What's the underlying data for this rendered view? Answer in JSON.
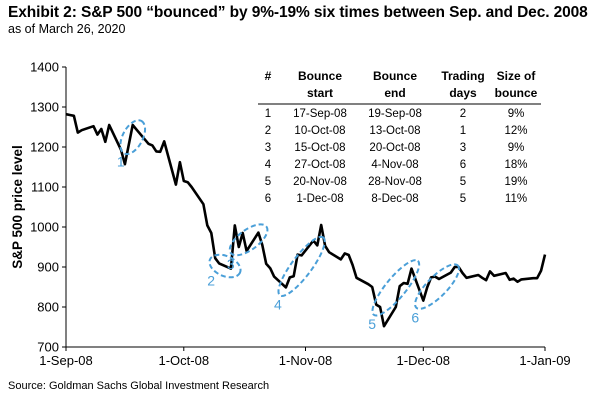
{
  "title": "Exhibit 2: S&P 500 “bounced” by 9%-19% six times between Sep. and Dec. 2008",
  "subtitle": "as of March 26, 2020",
  "source": "Source: Goldman Sachs Global Investment Research",
  "colors": {
    "line": "#000000",
    "callout": "#4a9fd8"
  },
  "chart_data": {
    "type": "line",
    "ylabel": "S&P 500 price level",
    "ylim": [
      700,
      1400
    ],
    "yticks": [
      700,
      800,
      900,
      1000,
      1100,
      1200,
      1300,
      1400
    ],
    "xlim_days": [
      0,
      122
    ],
    "xticks": [
      {
        "day": 0,
        "label": "1-Sep-08"
      },
      {
        "day": 30,
        "label": "1-Oct-08"
      },
      {
        "day": 61,
        "label": "1-Nov-08"
      },
      {
        "day": 91,
        "label": "1-Dec-08"
      },
      {
        "day": 122,
        "label": "1-Jan-09"
      }
    ],
    "series": [
      {
        "name": "S&P 500",
        "days": [
          0,
          1,
          2,
          3,
          4,
          7,
          8,
          9,
          10,
          11,
          14,
          15,
          16,
          17,
          18,
          21,
          22,
          23,
          24,
          25,
          28,
          29,
          30,
          31,
          32,
          35,
          36,
          37,
          38,
          39,
          42,
          43,
          44,
          45,
          46,
          49,
          50,
          51,
          52,
          53,
          56,
          57,
          58,
          59,
          60,
          63,
          64,
          65,
          66,
          67,
          70,
          71,
          72,
          73,
          74,
          77,
          78,
          79,
          80,
          81,
          84,
          85,
          86,
          87,
          88,
          91,
          92,
          93,
          94,
          95,
          98,
          99,
          100,
          101,
          102,
          105,
          106,
          107,
          108,
          109,
          112,
          113,
          114,
          115,
          116,
          119,
          120,
          121,
          122
        ],
        "values": [
          1282,
          1280,
          1278,
          1236,
          1242,
          1252,
          1231,
          1245,
          1213,
          1255,
          1193,
          1157,
          1206,
          1255,
          1243,
          1208,
          1204,
          1189,
          1188,
          1214,
          1106,
          1162,
          1115,
          1112,
          1100,
          1057,
          1004,
          985,
          922,
          909,
          896,
          1004,
          950,
          985,
          940,
          986,
          955,
          908,
          897,
          876,
          849,
          874,
          877,
          931,
          929,
          966,
          954,
          1005,
          953,
          937,
          919,
          934,
          930,
          905,
          873,
          857,
          850,
          806,
          800,
          752,
          800,
          852,
          860,
          858,
          896,
          816,
          849,
          874,
          876,
          870,
          886,
          900,
          900,
          885,
          873,
          880,
          873,
          867,
          889,
          878,
          885,
          868,
          871,
          863,
          869,
          872,
          872,
          891,
          931
        ]
      }
    ],
    "callouts": [
      {
        "label": "1",
        "start_day": 16,
        "end_day": 18
      },
      {
        "label": "2",
        "start_day": 39,
        "end_day": 42
      },
      {
        "label": "3",
        "start_day": 44,
        "end_day": 49
      },
      {
        "label": "4",
        "start_day": 56,
        "end_day": 64
      },
      {
        "label": "5",
        "start_day": 80,
        "end_day": 88
      },
      {
        "label": "6",
        "start_day": 91,
        "end_day": 98
      }
    ],
    "table": {
      "headers": [
        [
          "#",
          ""
        ],
        [
          "Bounce",
          "start"
        ],
        [
          "Bounce",
          "end"
        ],
        [
          "Trading",
          "days"
        ],
        [
          "Size of",
          "bounce"
        ]
      ],
      "rows": [
        [
          "1",
          "17-Sep-08",
          "19-Sep-08",
          "2",
          "9%"
        ],
        [
          "2",
          "10-Oct-08",
          "13-Oct-08",
          "1",
          "12%"
        ],
        [
          "3",
          "15-Oct-08",
          "20-Oct-08",
          "3",
          "9%"
        ],
        [
          "4",
          "27-Oct-08",
          "4-Nov-08",
          "6",
          "18%"
        ],
        [
          "5",
          "20-Nov-08",
          "28-Nov-08",
          "5",
          "19%"
        ],
        [
          "6",
          "1-Dec-08",
          "8-Dec-08",
          "5",
          "11%"
        ]
      ]
    }
  }
}
